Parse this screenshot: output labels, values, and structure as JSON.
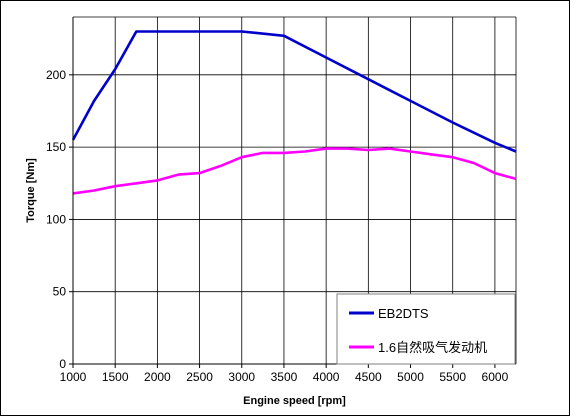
{
  "chart_data": {
    "type": "line",
    "xlabel": "Engine speed [rpm]",
    "ylabel": "Torque [Nm]",
    "xlim": [
      1000,
      6250
    ],
    "ylim": [
      0,
      240
    ],
    "xticks": [
      1000,
      1500,
      2000,
      2500,
      3000,
      3500,
      4000,
      4500,
      5000,
      5500,
      6000
    ],
    "yticks": [
      0,
      50,
      100,
      150,
      200
    ],
    "grid": true,
    "legend": "bottom-right",
    "series": [
      {
        "name": "EB2DTS",
        "color": "#0000cc",
        "points": [
          [
            1000,
            155
          ],
          [
            1250,
            182
          ],
          [
            1500,
            204
          ],
          [
            1750,
            230
          ],
          [
            2000,
            230
          ],
          [
            2500,
            230
          ],
          [
            3000,
            230
          ],
          [
            3500,
            227
          ],
          [
            4000,
            212
          ],
          [
            4500,
            197
          ],
          [
            5000,
            182
          ],
          [
            5500,
            167
          ],
          [
            6000,
            153
          ],
          [
            6250,
            147
          ]
        ]
      },
      {
        "name": "1.6自然吸气发动机",
        "color": "#ff00ff",
        "points": [
          [
            1000,
            118
          ],
          [
            1250,
            120
          ],
          [
            1500,
            123
          ],
          [
            1750,
            125
          ],
          [
            2000,
            127
          ],
          [
            2250,
            131
          ],
          [
            2500,
            132
          ],
          [
            2750,
            137
          ],
          [
            3000,
            143
          ],
          [
            3250,
            146
          ],
          [
            3500,
            146
          ],
          [
            3750,
            147
          ],
          [
            4000,
            149
          ],
          [
            4250,
            149
          ],
          [
            4500,
            148
          ],
          [
            4750,
            149
          ],
          [
            5000,
            147
          ],
          [
            5250,
            145
          ],
          [
            5500,
            143
          ],
          [
            5750,
            139
          ],
          [
            6000,
            132
          ],
          [
            6250,
            128
          ]
        ]
      }
    ]
  }
}
